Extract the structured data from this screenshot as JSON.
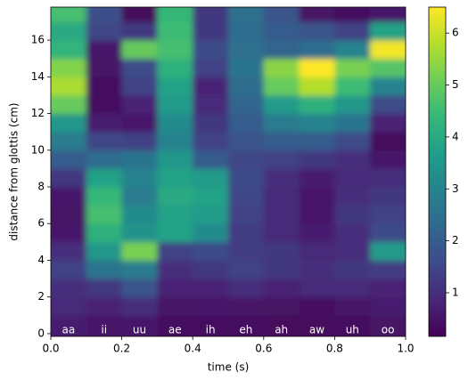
{
  "chart_data": {
    "type": "heatmap",
    "xlabel": "time (s)",
    "ylabel": "distance from glottis (cm)",
    "categories": [
      "aa",
      "ii",
      "uu",
      "ae",
      "ih",
      "eh",
      "ah",
      "aw",
      "uh",
      "oo"
    ],
    "x_edges": [
      0,
      0.1,
      0.2,
      0.3,
      0.4,
      0.5,
      0.6,
      0.7,
      0.8,
      0.9,
      1.0
    ],
    "y_edges": [
      -0.15,
      1,
      2,
      3,
      4,
      5,
      6,
      7,
      8,
      9,
      10,
      11,
      12,
      13,
      14,
      15,
      16,
      17,
      17.8
    ],
    "values": [
      [
        0.7,
        0.9,
        1.0,
        1.4,
        1.0,
        0.6,
        0.5,
        0.6,
        1.2,
        2.0,
        2.8,
        3.5,
        5.0,
        5.7,
        5.3,
        4.3,
        4.0,
        4.6
      ],
      [
        0.6,
        0.8,
        1.2,
        2.6,
        3.5,
        4.2,
        4.6,
        4.4,
        3.8,
        2.4,
        1.5,
        0.7,
        0.4,
        0.4,
        0.5,
        0.6,
        1.5,
        1.7
      ],
      [
        0.6,
        1.0,
        1.8,
        2.8,
        5.2,
        3.4,
        3.2,
        2.8,
        3.0,
        2.6,
        1.4,
        0.6,
        0.8,
        1.4,
        1.6,
        5.0,
        1.2,
        0.3
      ],
      [
        0.4,
        0.5,
        0.8,
        1.0,
        1.4,
        3.8,
        3.8,
        4.0,
        3.8,
        3.5,
        3.0,
        3.2,
        3.6,
        3.8,
        4.2,
        4.6,
        4.5,
        4.4
      ],
      [
        0.4,
        0.6,
        0.8,
        1.2,
        1.6,
        3.2,
        3.6,
        3.8,
        3.6,
        2.0,
        1.4,
        1.2,
        0.9,
        0.8,
        1.4,
        1.6,
        1.2,
        1.2
      ],
      [
        0.4,
        0.5,
        1.0,
        1.4,
        1.3,
        1.3,
        1.4,
        1.5,
        1.6,
        1.5,
        1.8,
        2.0,
        2.2,
        2.4,
        2.6,
        2.5,
        2.4,
        2.5
      ],
      [
        0.3,
        0.5,
        0.8,
        1.2,
        1.2,
        0.9,
        0.9,
        0.9,
        1.0,
        1.4,
        2.0,
        2.8,
        3.6,
        5.0,
        5.4,
        2.2,
        2.0,
        1.8
      ],
      [
        0.3,
        0.4,
        0.9,
        1.0,
        0.9,
        0.7,
        0.6,
        0.6,
        0.7,
        1.2,
        2.0,
        3.0,
        4.2,
        5.8,
        6.5,
        2.4,
        1.8,
        0.5
      ],
      [
        0.4,
        0.5,
        0.9,
        1.2,
        1.0,
        1.0,
        1.2,
        1.0,
        0.9,
        1.0,
        1.6,
        2.6,
        3.5,
        4.5,
        5.2,
        3.0,
        1.4,
        0.4
      ],
      [
        0.5,
        0.7,
        0.8,
        1.3,
        3.6,
        1.6,
        1.4,
        1.2,
        1.0,
        0.6,
        0.3,
        0.8,
        1.6,
        3.0,
        4.8,
        6.4,
        3.8,
        0.6
      ]
    ],
    "xlim": [
      0,
      1.0
    ],
    "xticks": [
      {
        "value": 0,
        "label": "0.0"
      },
      {
        "value": 0.2,
        "label": "0.2"
      },
      {
        "value": 0.4,
        "label": "0.4"
      },
      {
        "value": 0.6,
        "label": "0.6"
      },
      {
        "value": 0.8,
        "label": "0.8"
      },
      {
        "value": 1.0,
        "label": "1.0"
      }
    ],
    "ylim": [
      -0.15,
      17.8
    ],
    "yticks": [
      0,
      2,
      4,
      6,
      8,
      10,
      12,
      14,
      16
    ],
    "colormap": "viridis",
    "clim": [
      0.16,
      6.5
    ],
    "cticks": [
      1,
      2,
      3,
      4,
      5,
      6
    ]
  }
}
